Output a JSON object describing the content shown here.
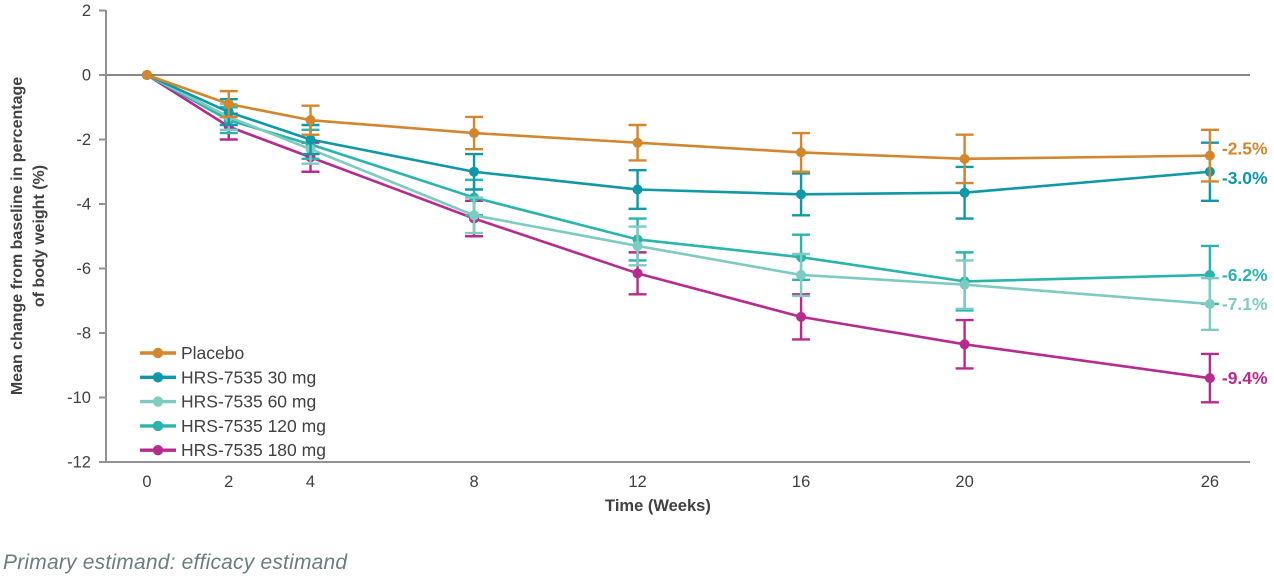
{
  "figure": {
    "caption": "Primary estimand: efficacy estimand"
  },
  "chart_data": {
    "type": "line",
    "title": "",
    "xlabel": "Time (Weeks)",
    "ylabel": "Mean change from baseline in percentage of body weight (%)",
    "ylabel_lines": [
      "Mean change from baseline in percentage",
      "of body weight (%)"
    ],
    "x": [
      0,
      2,
      4,
      8,
      12,
      16,
      20,
      26
    ],
    "xlim": [
      -1,
      27.5
    ],
    "ylim": [
      -12,
      2
    ],
    "yticks": [
      2,
      0,
      -2,
      -4,
      -6,
      -8,
      -10,
      -12
    ],
    "grid": false,
    "zero_reference_line": true,
    "error_bars": true,
    "legend_position": "lower-left",
    "series": [
      {
        "name": "Placebo",
        "color": "#D4862E",
        "values": [
          0,
          -0.9,
          -1.4,
          -1.8,
          -2.1,
          -2.4,
          -2.6,
          -2.5
        ],
        "errors": [
          0,
          0.4,
          0.45,
          0.5,
          0.55,
          0.6,
          0.75,
          0.8
        ],
        "end_label": "-2.5%",
        "end_label_dy": -7
      },
      {
        "name": "HRS-7535 30 mg",
        "color": "#0E98A8",
        "values": [
          0,
          -1.15,
          -2.0,
          -3.0,
          -3.55,
          -3.7,
          -3.65,
          -3.0
        ],
        "errors": [
          0,
          0.4,
          0.45,
          0.55,
          0.6,
          0.65,
          0.8,
          0.9
        ],
        "end_label": "-3.0%",
        "end_label_dy": 6
      },
      {
        "name": "HRS-7535 60 mg",
        "color": "#7ECBC1",
        "values": [
          0,
          -1.3,
          -2.3,
          -4.35,
          -5.3,
          -6.2,
          -6.5,
          -7.1
        ],
        "errors": [
          0,
          0.4,
          0.45,
          0.55,
          0.6,
          0.65,
          0.75,
          0.8
        ],
        "end_label": "-7.1%",
        "end_label_dy": 0
      },
      {
        "name": "HRS-7535 120 mg",
        "color": "#2AB4AE",
        "values": [
          0,
          -1.4,
          -2.15,
          -3.8,
          -5.1,
          -5.65,
          -6.4,
          -6.2
        ],
        "errors": [
          0,
          0.4,
          0.45,
          0.55,
          0.65,
          0.7,
          0.9,
          0.9
        ],
        "end_label": "-6.2%",
        "end_label_dy": 0
      },
      {
        "name": "HRS-7535 180 mg",
        "color": "#B72A8E",
        "values": [
          0,
          -1.6,
          -2.55,
          -4.45,
          -6.15,
          -7.5,
          -8.35,
          -9.4
        ],
        "errors": [
          0,
          0.4,
          0.45,
          0.55,
          0.65,
          0.7,
          0.75,
          0.75
        ],
        "end_label": "-9.4%",
        "end_label_dy": 0
      }
    ]
  },
  "colors": {
    "axis_line": "#909294",
    "zero_line": "#85878A",
    "tick_text": "#3F4143",
    "axis_title_text": "#3F4143",
    "legend_text": "#414144",
    "caption_text": "#6B7D80",
    "background": "#FFFFFF"
  }
}
